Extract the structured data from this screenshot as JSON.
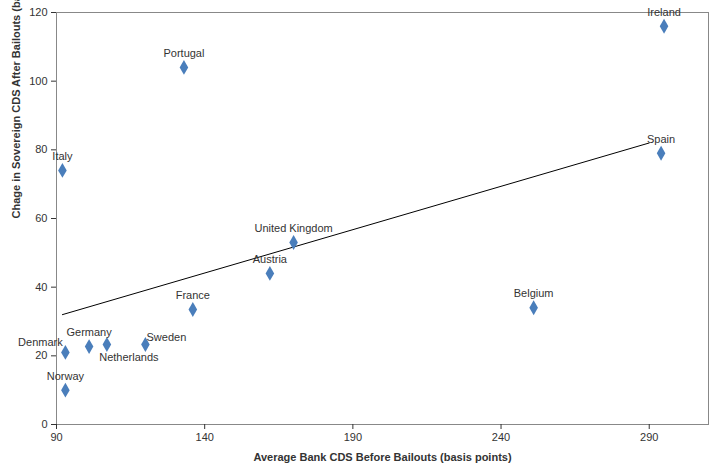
{
  "chart_data": {
    "type": "scatter",
    "x_label": "Average Bank CDS Before Bailouts (basis points)",
    "y_label": "Chage in Sovereign CDS After Bailouts (basis points)",
    "labels": [
      "Ireland",
      "Spain",
      "Portugal",
      "Italy",
      "United Kingdom",
      "Austria",
      "France",
      "Belgium",
      "Denmark",
      "Germany",
      "Netherlands",
      "Sweden",
      "Norway"
    ],
    "x": [
      295,
      294,
      133,
      92,
      170,
      162,
      136,
      251,
      93,
      101,
      107,
      120,
      93
    ],
    "y": [
      116,
      79,
      104,
      74,
      53,
      44,
      33.5,
      34,
      21,
      22.7,
      23.3,
      23.3,
      10
    ],
    "trend_line": {
      "x": [
        92,
        290
      ],
      "y": [
        32,
        82
      ]
    },
    "color": "#4a7ebb",
    "marker": "diamond",
    "xlim": [
      90,
      310
    ],
    "xticks": [
      90,
      140,
      190,
      240,
      290
    ],
    "ylim": [
      0,
      120
    ],
    "yticks": [
      0,
      20,
      40,
      60,
      80,
      100,
      120
    ],
    "grid": false
  }
}
